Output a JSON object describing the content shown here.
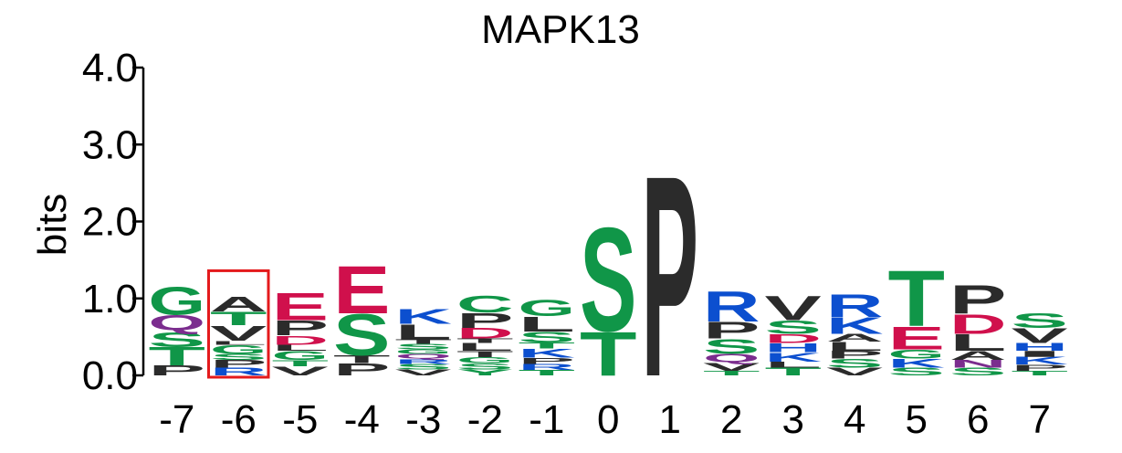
{
  "chart_data": {
    "type": "sequence-logo",
    "title": "MAPK13",
    "ylabel": "bits",
    "ylim": [
      0,
      4
    ],
    "y_ticks": [
      "0.0",
      "1.0",
      "2.0",
      "3.0",
      "4.0"
    ],
    "positions": [
      "-7",
      "-6",
      "-5",
      "-4",
      "-3",
      "-2",
      "-1",
      "0",
      "1",
      "2",
      "3",
      "4",
      "5",
      "6",
      "7"
    ],
    "highlighted_position": "-6",
    "highlight_color": "#e41a1c",
    "colors": {
      "green": "#109648",
      "purple": "#7b2d8e",
      "black": "#2b2b2b",
      "blue": "#0c4fcf",
      "red": "#d0104c"
    },
    "stacks": [
      [
        {
          "l": "P",
          "h": 0.13,
          "c": "black"
        },
        {
          "l": "T",
          "h": 0.24,
          "c": "green"
        },
        {
          "l": "S",
          "h": 0.2,
          "c": "green"
        },
        {
          "l": "Q",
          "h": 0.22,
          "c": "purple"
        },
        {
          "l": "G",
          "h": 0.37,
          "c": "green"
        }
      ],
      [
        {
          "l": "R",
          "h": 0.1,
          "c": "blue"
        },
        {
          "l": "P",
          "h": 0.1,
          "c": "black"
        },
        {
          "l": "S",
          "h": 0.08,
          "c": "green"
        },
        {
          "l": "G",
          "h": 0.12,
          "c": "green"
        },
        {
          "l": "L",
          "h": 0.05,
          "c": "black"
        },
        {
          "l": "V",
          "h": 0.2,
          "c": "black"
        },
        {
          "l": "T",
          "h": 0.18,
          "c": "green"
        },
        {
          "l": "A",
          "h": 0.2,
          "c": "black"
        }
      ],
      [
        {
          "l": "V",
          "h": 0.12,
          "c": "black"
        },
        {
          "l": "T",
          "h": 0.08,
          "c": "green"
        },
        {
          "l": "G",
          "h": 0.12,
          "c": "green"
        },
        {
          "l": "L",
          "h": 0.08,
          "c": "black"
        },
        {
          "l": "D",
          "h": 0.12,
          "c": "red"
        },
        {
          "l": "P",
          "h": 0.2,
          "c": "black"
        },
        {
          "l": "E",
          "h": 0.36,
          "c": "red"
        }
      ],
      [
        {
          "l": "P",
          "h": 0.16,
          "c": "black"
        },
        {
          "l": "T",
          "h": 0.1,
          "c": "black"
        },
        {
          "l": "S",
          "h": 0.55,
          "c": "green"
        },
        {
          "l": "E",
          "h": 0.63,
          "c": "red"
        }
      ],
      [
        {
          "l": "V",
          "h": 0.08,
          "c": "black"
        },
        {
          "l": "S",
          "h": 0.07,
          "c": "green"
        },
        {
          "l": "R",
          "h": 0.06,
          "c": "blue"
        },
        {
          "l": "Q",
          "h": 0.07,
          "c": "purple"
        },
        {
          "l": "G",
          "h": 0.06,
          "c": "green"
        },
        {
          "l": "S",
          "h": 0.07,
          "c": "green"
        },
        {
          "l": "T",
          "h": 0.06,
          "c": "black"
        },
        {
          "l": "L",
          "h": 0.2,
          "c": "black"
        },
        {
          "l": "K",
          "h": 0.2,
          "c": "blue"
        }
      ],
      [
        {
          "l": "Y",
          "h": 0.08,
          "c": "green"
        },
        {
          "l": "S",
          "h": 0.08,
          "c": "green"
        },
        {
          "l": "G",
          "h": 0.08,
          "c": "green"
        },
        {
          "l": "T",
          "h": 0.08,
          "c": "black"
        },
        {
          "l": "L",
          "h": 0.1,
          "c": "black"
        },
        {
          "l": "T",
          "h": 0.06,
          "c": "black"
        },
        {
          "l": "D",
          "h": 0.14,
          "c": "red"
        },
        {
          "l": "P",
          "h": 0.2,
          "c": "black"
        },
        {
          "l": "C",
          "h": 0.22,
          "c": "green"
        }
      ],
      [
        {
          "l": "T",
          "h": 0.07,
          "c": "green"
        },
        {
          "l": "R",
          "h": 0.08,
          "c": "blue"
        },
        {
          "l": "P",
          "h": 0.08,
          "c": "black"
        },
        {
          "l": "K",
          "h": 0.12,
          "c": "blue"
        },
        {
          "l": "T",
          "h": 0.08,
          "c": "green"
        },
        {
          "l": "S",
          "h": 0.14,
          "c": "green"
        },
        {
          "l": "L",
          "h": 0.2,
          "c": "black"
        },
        {
          "l": "G",
          "h": 0.21,
          "c": "green"
        }
      ],
      [
        {
          "l": "T",
          "h": 0.58,
          "c": "green"
        },
        {
          "l": "S",
          "h": 1.38,
          "c": "green"
        }
      ],
      [
        {
          "l": "P",
          "h": 2.67,
          "c": "black"
        }
      ],
      [
        {
          "l": "T",
          "h": 0.06,
          "c": "green"
        },
        {
          "l": "V",
          "h": 0.1,
          "c": "black"
        },
        {
          "l": "Q",
          "h": 0.12,
          "c": "purple"
        },
        {
          "l": "S",
          "h": 0.2,
          "c": "green"
        },
        {
          "l": "P",
          "h": 0.22,
          "c": "black"
        },
        {
          "l": "R",
          "h": 0.4,
          "c": "blue"
        }
      ],
      [
        {
          "l": "T",
          "h": 0.1,
          "c": "green"
        },
        {
          "l": "L",
          "h": 0.08,
          "c": "black"
        },
        {
          "l": "K",
          "h": 0.12,
          "c": "blue"
        },
        {
          "l": "H",
          "h": 0.12,
          "c": "blue"
        },
        {
          "l": "D",
          "h": 0.12,
          "c": "red"
        },
        {
          "l": "S",
          "h": 0.18,
          "c": "green"
        },
        {
          "l": "V",
          "h": 0.32,
          "c": "black"
        }
      ],
      [
        {
          "l": "V",
          "h": 0.1,
          "c": "black"
        },
        {
          "l": "S",
          "h": 0.12,
          "c": "green"
        },
        {
          "l": "P",
          "h": 0.1,
          "c": "black"
        },
        {
          "l": "L",
          "h": 0.12,
          "c": "black"
        },
        {
          "l": "A",
          "h": 0.1,
          "c": "black"
        },
        {
          "l": "K",
          "h": 0.22,
          "c": "blue"
        },
        {
          "l": "R",
          "h": 0.3,
          "c": "blue"
        }
      ],
      [
        {
          "l": "S",
          "h": 0.1,
          "c": "green"
        },
        {
          "l": "K",
          "h": 0.12,
          "c": "blue"
        },
        {
          "l": "G",
          "h": 0.12,
          "c": "green"
        },
        {
          "l": "E",
          "h": 0.3,
          "c": "red"
        },
        {
          "l": "T",
          "h": 0.74,
          "c": "green"
        }
      ],
      [
        {
          "l": "S",
          "h": 0.1,
          "c": "green"
        },
        {
          "l": "N",
          "h": 0.1,
          "c": "purple"
        },
        {
          "l": "A",
          "h": 0.12,
          "c": "black"
        },
        {
          "l": "L",
          "h": 0.22,
          "c": "black"
        },
        {
          "l": "D",
          "h": 0.26,
          "c": "red"
        },
        {
          "l": "P",
          "h": 0.38,
          "c": "black"
        }
      ],
      [
        {
          "l": "T",
          "h": 0.06,
          "c": "green"
        },
        {
          "l": "P",
          "h": 0.08,
          "c": "black"
        },
        {
          "l": "K",
          "h": 0.1,
          "c": "blue"
        },
        {
          "l": "I",
          "h": 0.08,
          "c": "black"
        },
        {
          "l": "H",
          "h": 0.1,
          "c": "blue"
        },
        {
          "l": "V",
          "h": 0.2,
          "c": "black"
        },
        {
          "l": "S",
          "h": 0.2,
          "c": "green"
        }
      ]
    ]
  }
}
